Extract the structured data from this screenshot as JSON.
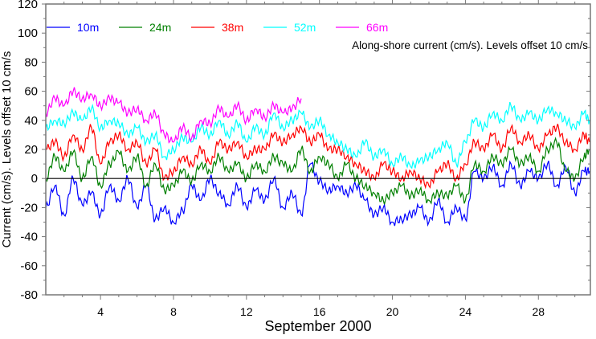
{
  "chart_data": {
    "type": "line",
    "title": "Along-shore current (cm/s). Levels offset 10 cm/s",
    "xlabel": "September 2000",
    "ylabel": "Current (cm/s). Levels offset 10 cm/s",
    "xlim": [
      1,
      30.85
    ],
    "ylim": [
      -80,
      120
    ],
    "xticks": [
      4,
      8,
      12,
      16,
      20,
      24,
      28
    ],
    "xtick_labels": [
      "4",
      "8",
      "12",
      "16",
      "20",
      "24",
      "28"
    ],
    "yticks": [
      -80,
      -60,
      -40,
      -20,
      0,
      20,
      40,
      60,
      80,
      100,
      120
    ],
    "ytick_labels": [
      "-80",
      "-60",
      "-40",
      "-20",
      "0",
      "20",
      "40",
      "60",
      "80",
      "100",
      "120"
    ],
    "zero_line": true,
    "grid": false,
    "legend_position": "top-left",
    "x": [
      1,
      1.5,
      2,
      2.5,
      3,
      3.5,
      4,
      4.5,
      5,
      5.5,
      6,
      6.5,
      7,
      7.5,
      8,
      8.5,
      9,
      9.5,
      10,
      10.5,
      11,
      11.5,
      12,
      12.5,
      13,
      13.5,
      14,
      14.5,
      15,
      15.5,
      16,
      16.5,
      17,
      17.5,
      18,
      18.5,
      19,
      19.5,
      20,
      20.5,
      21,
      21.5,
      22,
      22.5,
      23,
      23.5,
      24,
      24.5,
      25,
      25.5,
      26,
      26.5,
      27,
      27.5,
      28,
      28.5,
      29,
      29.5,
      30,
      30.5,
      30.8
    ],
    "series": [
      {
        "name": "10m",
        "color": "#0000ff",
        "values": [
          -20,
          -5,
          -25,
          0,
          -18,
          -10,
          -25,
          -5,
          -15,
          0,
          -20,
          -5,
          -28,
          -20,
          -30,
          -22,
          -5,
          -15,
          0,
          -10,
          -18,
          -5,
          -20,
          -8,
          -15,
          0,
          -20,
          -10,
          -25,
          10,
          -2,
          -8,
          -5,
          -10,
          -5,
          -15,
          -25,
          -20,
          -30,
          -28,
          -25,
          -20,
          -30,
          -15,
          -30,
          -20,
          -28,
          5,
          0,
          8,
          -5,
          10,
          -5,
          5,
          0,
          10,
          -5,
          8,
          -10,
          5,
          5
        ]
      },
      {
        "name": "24m",
        "color": "#008000",
        "values": [
          0,
          15,
          5,
          18,
          0,
          15,
          -5,
          10,
          18,
          5,
          15,
          -5,
          10,
          -8,
          -5,
          5,
          -2,
          10,
          5,
          15,
          5,
          10,
          0,
          10,
          5,
          15,
          10,
          5,
          20,
          5,
          15,
          10,
          0,
          10,
          0,
          -5,
          -10,
          -15,
          -10,
          -5,
          -12,
          -8,
          -15,
          -10,
          -12,
          -5,
          -15,
          10,
          5,
          15,
          10,
          20,
          10,
          15,
          5,
          20,
          25,
          5,
          0,
          15,
          20
        ]
      },
      {
        "name": "38m",
        "color": "#ff0000",
        "values": [
          20,
          25,
          15,
          30,
          20,
          35,
          10,
          25,
          30,
          20,
          25,
          10,
          20,
          0,
          5,
          15,
          10,
          20,
          10,
          25,
          20,
          25,
          15,
          20,
          20,
          30,
          25,
          30,
          35,
          25,
          30,
          20,
          20,
          15,
          10,
          5,
          0,
          10,
          5,
          0,
          5,
          0,
          -5,
          5,
          10,
          0,
          10,
          25,
          20,
          30,
          20,
          35,
          25,
          30,
          20,
          30,
          35,
          25,
          20,
          30,
          25
        ]
      },
      {
        "name": "52m",
        "color": "#00ffff",
        "values": [
          35,
          40,
          38,
          45,
          40,
          48,
          35,
          40,
          38,
          30,
          35,
          25,
          30,
          15,
          20,
          28,
          25,
          35,
          30,
          40,
          30,
          38,
          25,
          35,
          30,
          45,
          35,
          40,
          45,
          35,
          40,
          30,
          25,
          20,
          15,
          25,
          15,
          20,
          10,
          15,
          8,
          12,
          15,
          20,
          25,
          10,
          25,
          40,
          35,
          45,
          40,
          50,
          40,
          45,
          40,
          48,
          45,
          40,
          35,
          45,
          40
        ]
      },
      {
        "name": "66m",
        "color": "#ff00ff",
        "values": [
          45,
          55,
          50,
          60,
          55,
          58,
          50,
          55,
          52,
          45,
          48,
          40,
          45,
          30,
          25,
          35,
          28,
          40,
          38,
          48,
          42,
          50,
          40,
          48,
          42,
          50,
          45,
          48,
          55,
          null,
          null,
          null,
          null,
          null,
          null,
          null,
          null,
          null,
          null,
          null,
          null,
          null,
          null,
          null,
          null,
          null,
          null,
          null,
          null,
          null,
          null,
          null,
          null,
          null,
          null,
          null,
          null,
          null,
          null,
          null,
          null
        ]
      }
    ]
  }
}
